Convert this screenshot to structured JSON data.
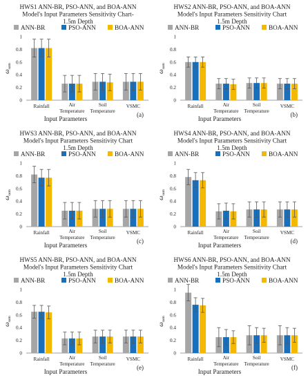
{
  "colors": {
    "ANN-BR": "#a6a6a6",
    "PSO-ANN": "#1a6fba",
    "BOA-ANN": "#f5b800",
    "errorbar": "#555555",
    "axis": "#7f7f7f"
  },
  "chart_data": [
    {
      "type": "bar",
      "panel": "(a)",
      "title_lines": [
        "HWS1 ANN-BR, PSO-ANN, and BOA-ANN",
        "Model's Input Parameters Sensitivity Chart-",
        "1.5m Depth"
      ],
      "ylabel": "ω",
      "ylabel_sub": "sum",
      "xlabel": "Input Parameters",
      "ylim": [
        0,
        1
      ],
      "yticks": [
        "0",
        "0.2",
        "0.4",
        "0.6",
        "0.8",
        "1"
      ],
      "categories": [
        "Rainfall",
        "Air|Temperature",
        "Soil|Temperature",
        "VSMC"
      ],
      "legend": [
        "ANN-BR",
        "PSO-ANN",
        "BOA-ANN"
      ],
      "series": [
        {
          "name": "ANN-BR",
          "values": [
            0.82,
            0.26,
            0.29,
            0.29
          ],
          "error": [
            0.14,
            0.13,
            0.13,
            0.13
          ]
        },
        {
          "name": "PSO-ANN",
          "values": [
            0.82,
            0.26,
            0.29,
            0.29
          ],
          "error": [
            0.14,
            0.13,
            0.13,
            0.13
          ]
        },
        {
          "name": "BOA-ANN",
          "values": [
            0.82,
            0.26,
            0.28,
            0.29
          ],
          "error": [
            0.14,
            0.13,
            0.13,
            0.13
          ]
        }
      ]
    },
    {
      "type": "bar",
      "panel": "(b)",
      "title_lines": [
        "HWS2 ANN-BR, PSO-ANN, and BOA-ANN",
        "Model's Input Parameters Sensitivity Chart",
        "1.5m Depth"
      ],
      "ylabel": "ω",
      "ylabel_sub": "sum",
      "xlabel": "Input Parameters",
      "ylim": [
        0,
        1
      ],
      "yticks": [
        "0",
        "0.2",
        "0.4",
        "0.6",
        "0.8",
        "1"
      ],
      "categories": [
        "Rainfall",
        "Air|Temperature",
        "Soil|Temperature",
        "VSMC"
      ],
      "legend": [
        "ANN-BR",
        "PSO-ANN",
        "BOA-ANN"
      ],
      "series": [
        {
          "name": "ANN-BR",
          "values": [
            0.6,
            0.26,
            0.27,
            0.26
          ],
          "error": [
            0.08,
            0.08,
            0.08,
            0.08
          ]
        },
        {
          "name": "PSO-ANN",
          "values": [
            0.6,
            0.26,
            0.27,
            0.26
          ],
          "error": [
            0.08,
            0.08,
            0.08,
            0.08
          ]
        },
        {
          "name": "BOA-ANN",
          "values": [
            0.6,
            0.25,
            0.27,
            0.26
          ],
          "error": [
            0.08,
            0.08,
            0.08,
            0.08
          ]
        }
      ]
    },
    {
      "type": "bar",
      "panel": "(c)",
      "title_lines": [
        "HWS3 ANN-BR, PSO-ANN, and BOA-ANN",
        "Model's Input Parameters Sensitivity Chart",
        "1.5m Depth"
      ],
      "ylabel": "ω",
      "ylabel_sub": "sum",
      "xlabel": "Input Parameters",
      "ylim": [
        0,
        1
      ],
      "yticks": [
        "0",
        "0.2",
        "0.4",
        "0.6",
        "0.8",
        "1"
      ],
      "categories": [
        "Rainfall",
        "Air|Temperature",
        "Soil|Temperature",
        "VSMC"
      ],
      "legend": [
        "ANN-BR",
        "PSO-ANN",
        "BOA-ANN"
      ],
      "series": [
        {
          "name": "ANN-BR",
          "values": [
            0.82,
            0.25,
            0.28,
            0.28
          ],
          "error": [
            0.13,
            0.13,
            0.13,
            0.13
          ]
        },
        {
          "name": "PSO-ANN",
          "values": [
            0.77,
            0.25,
            0.28,
            0.28
          ],
          "error": [
            0.13,
            0.13,
            0.13,
            0.13
          ]
        },
        {
          "name": "BOA-ANN",
          "values": [
            0.77,
            0.25,
            0.28,
            0.28
          ],
          "error": [
            0.13,
            0.13,
            0.13,
            0.13
          ]
        }
      ]
    },
    {
      "type": "bar",
      "panel": "(d)",
      "title_lines": [
        "HWS4 ANN-BR, PSO-ANN, and BOA-ANN",
        "Model's Input Parameters Sensitivity Chart",
        "1.5m Depth"
      ],
      "ylabel": "ω",
      "ylabel_sub": "sum",
      "xlabel": "Input Parameters",
      "ylim": [
        0,
        1
      ],
      "yticks": [
        "0",
        "0.2",
        "0.4",
        "0.6",
        "0.8",
        "1"
      ],
      "categories": [
        "Rainfall",
        "Air|Temperature",
        "Soil|Temperature",
        "VSMC"
      ],
      "legend": [
        "ANN-BR",
        "PSO-ANN",
        "BOA-ANN"
      ],
      "series": [
        {
          "name": "ANN-BR",
          "values": [
            0.78,
            0.24,
            0.27,
            0.27
          ],
          "error": [
            0.12,
            0.12,
            0.12,
            0.12
          ]
        },
        {
          "name": "PSO-ANN",
          "values": [
            0.73,
            0.25,
            0.27,
            0.27
          ],
          "error": [
            0.12,
            0.12,
            0.12,
            0.12
          ]
        },
        {
          "name": "BOA-ANN",
          "values": [
            0.73,
            0.24,
            0.27,
            0.27
          ],
          "error": [
            0.12,
            0.12,
            0.12,
            0.12
          ]
        }
      ]
    },
    {
      "type": "bar",
      "panel": "(e)",
      "title_lines": [
        "HWS5 ANN-BR, PSO-ANN, and BOA-ANN",
        "Model's Input Parameters Sensitivity Chart",
        "1.5m Depth"
      ],
      "ylabel": "ω",
      "ylabel_sub": "sum",
      "xlabel": "Input Parameters",
      "ylim": [
        0,
        1
      ],
      "yticks": [
        "0",
        "0.2",
        "0.4",
        "0.6",
        "0.8",
        "1"
      ],
      "categories": [
        "Rainfall",
        "Air|Temperature",
        "Soil|Temperature",
        "VSMC"
      ],
      "legend": [
        "ANN-BR",
        "PSO-ANN",
        "BOA-ANN"
      ],
      "series": [
        {
          "name": "ANN-BR",
          "values": [
            0.65,
            0.23,
            0.26,
            0.26
          ],
          "error": [
            0.1,
            0.1,
            0.1,
            0.1
          ]
        },
        {
          "name": "PSO-ANN",
          "values": [
            0.65,
            0.23,
            0.26,
            0.26
          ],
          "error": [
            0.1,
            0.1,
            0.1,
            0.1
          ]
        },
        {
          "name": "BOA-ANN",
          "values": [
            0.64,
            0.23,
            0.26,
            0.26
          ],
          "error": [
            0.1,
            0.1,
            0.1,
            0.1
          ]
        }
      ]
    },
    {
      "type": "bar",
      "panel": "(f)",
      "title_lines": [
        "HWS6 ANN-BR, PSO-ANN, and BOA-ANN",
        "Model's Input Parameters Sensitivity Chart",
        "1.5m Depth"
      ],
      "ylabel": "ω",
      "ylabel_sub": "sum",
      "xlabel": "Input Parameters",
      "ylim": [
        0,
        1
      ],
      "yticks": [
        "0",
        "0.2",
        "0.4",
        "0.6",
        "0.8",
        "1"
      ],
      "categories": [
        "Rainfall",
        "Air|Temperature",
        "Soil|Temperature",
        "VSMC"
      ],
      "legend": [
        "ANN-BR",
        "PSO-ANN",
        "BOA-ANN"
      ],
      "series": [
        {
          "name": "ANN-BR",
          "values": [
            0.95,
            0.25,
            0.28,
            0.28
          ],
          "error": [
            0.13,
            0.15,
            0.15,
            0.15
          ]
        },
        {
          "name": "PSO-ANN",
          "values": [
            0.76,
            0.25,
            0.28,
            0.28
          ],
          "error": [
            0.11,
            0.12,
            0.12,
            0.12
          ]
        },
        {
          "name": "BOA-ANN",
          "values": [
            0.75,
            0.25,
            0.28,
            0.28
          ],
          "error": [
            0.11,
            0.1,
            0.11,
            0.11
          ]
        }
      ]
    }
  ]
}
